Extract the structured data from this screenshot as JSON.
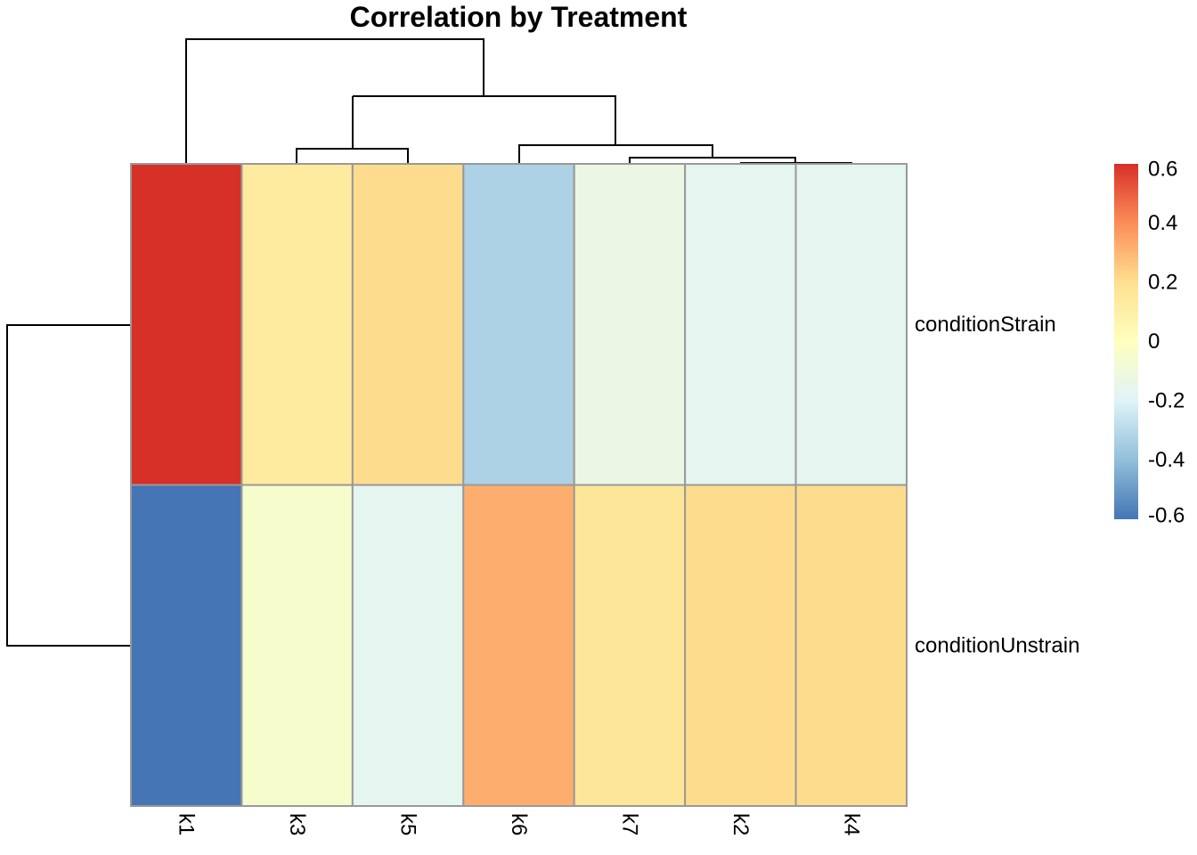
{
  "chart_data": {
    "type": "heatmap",
    "title": "Correlation by Treatment",
    "columns": [
      "k1",
      "k3",
      "k5",
      "k6",
      "k7",
      "k2",
      "k4"
    ],
    "rows": [
      "conditionStrain",
      "conditionUnstrain"
    ],
    "values": [
      [
        0.62,
        0.13,
        0.21,
        -0.33,
        -0.13,
        -0.17,
        -0.17
      ],
      [
        -0.62,
        -0.05,
        -0.17,
        0.32,
        0.16,
        0.21,
        0.21
      ]
    ],
    "color_scale": {
      "min": -0.6,
      "max": 0.6,
      "ticks": [
        "0.6",
        "0.4",
        "0.2",
        "0",
        "-0.2",
        "-0.4",
        "-0.6"
      ],
      "tick_values": [
        0.6,
        0.4,
        0.2,
        0,
        -0.2,
        -0.4,
        -0.6
      ],
      "colors": [
        "#4575B4",
        "#91BFDB",
        "#E0F3F8",
        "#FFFFBF",
        "#FEE090",
        "#FC8D59",
        "#D73027"
      ]
    },
    "cell_border_color": "#999999",
    "legend_position": "right",
    "column_dendrogram": true,
    "row_dendrogram": true
  }
}
